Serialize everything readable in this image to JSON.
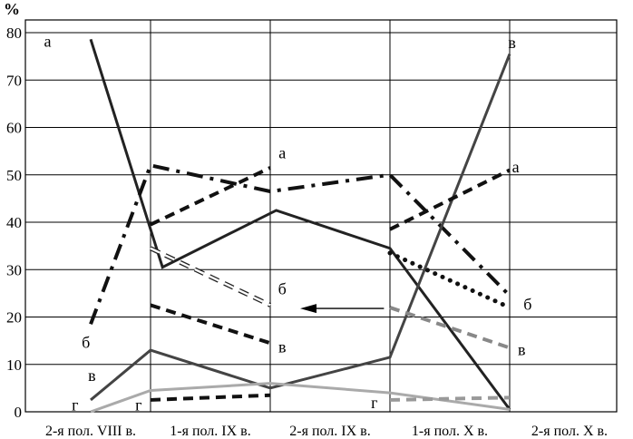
{
  "chart_data": {
    "type": "line",
    "ylabel": "%",
    "ylim": [
      0,
      80
    ],
    "yticks": [
      0,
      10,
      20,
      30,
      40,
      50,
      60,
      70,
      80
    ],
    "categories": [
      "2-я пол. VIII в.",
      "1-я пол. IX в.",
      "2-я пол. IX в.",
      "1-я пол. X в.",
      "2-я пол. X в."
    ],
    "grid": true,
    "series": [
      {
        "name": "а",
        "style": "solid",
        "color": "#222222",
        "points": [
          [
            0,
            78.6
          ],
          [
            0.6,
            30.5
          ],
          [
            1.55,
            42.5
          ],
          [
            2.5,
            34.5
          ],
          [
            3.5,
            0.5
          ]
        ]
      },
      {
        "name": "б",
        "style": "dash-dot",
        "color": "#111111",
        "points": [
          [
            0,
            18.5
          ],
          [
            0.5,
            52
          ],
          [
            1.5,
            46.5
          ],
          [
            2.5,
            50
          ],
          [
            3.5,
            24.5
          ]
        ]
      },
      {
        "name": "в",
        "style": "solid",
        "color": "#444444",
        "points": [
          [
            0,
            2.5
          ],
          [
            0.5,
            13
          ],
          [
            1.5,
            5
          ],
          [
            2.5,
            11.5
          ],
          [
            3.5,
            75.5
          ]
        ]
      },
      {
        "name": "г",
        "style": "solid",
        "color": "#aaaaaa",
        "points": [
          [
            0,
            0
          ],
          [
            0.5,
            4.5
          ],
          [
            1.5,
            6
          ],
          [
            2.5,
            4
          ],
          [
            3.5,
            0.5
          ]
        ]
      },
      {
        "name": "а",
        "style": "dashed",
        "color": "#111111",
        "points": [
          [
            0.5,
            39.5
          ],
          [
            1.5,
            51.5
          ]
        ]
      },
      {
        "name": "б",
        "style": "hollow-dashed",
        "color": "#222222",
        "points": [
          [
            0.5,
            34.5
          ],
          [
            1.5,
            22.5
          ]
        ]
      },
      {
        "name": "в",
        "style": "dashed",
        "color": "#111111",
        "points": [
          [
            0.5,
            22.5
          ],
          [
            1.5,
            14.5
          ]
        ]
      },
      {
        "name": "г",
        "style": "dashed",
        "color": "#111111",
        "points": [
          [
            0.5,
            2.5
          ],
          [
            1.5,
            3.5
          ]
        ]
      },
      {
        "name": "а",
        "style": "dashed",
        "color": "#111111",
        "points": [
          [
            2.5,
            38.5
          ],
          [
            3.5,
            51
          ]
        ]
      },
      {
        "name": "б",
        "style": "dotted",
        "color": "#111111",
        "points": [
          [
            2.5,
            33.5
          ],
          [
            3.5,
            22
          ]
        ]
      },
      {
        "name": "в",
        "style": "dashed",
        "color": "#888888",
        "points": [
          [
            2.5,
            22
          ],
          [
            3.5,
            13.5
          ]
        ]
      },
      {
        "name": "г",
        "style": "dashed",
        "color": "#999999",
        "points": [
          [
            2.5,
            2.5
          ],
          [
            3.5,
            3
          ]
        ]
      }
    ],
    "annotations": [
      {
        "text": "а",
        "x": -0.36,
        "y": 77
      },
      {
        "text": "б",
        "x": -0.04,
        "y": 13.5
      },
      {
        "text": "в",
        "x": 0.01,
        "y": 6.5
      },
      {
        "text": "г",
        "x": -0.13,
        "y": 0.3
      },
      {
        "text": "а",
        "x": 1.6,
        "y": 53.5
      },
      {
        "text": "б",
        "x": 1.6,
        "y": 24.8
      },
      {
        "text": "в",
        "x": 1.6,
        "y": 12.5
      },
      {
        "text": "г",
        "x": 0.4,
        "y": 0.3
      },
      {
        "text": "в",
        "x": 3.52,
        "y": 76.7
      },
      {
        "text": "а",
        "x": 3.55,
        "y": 50.5
      },
      {
        "text": "б",
        "x": 3.65,
        "y": 21.5
      },
      {
        "text": "в",
        "x": 3.6,
        "y": 12
      },
      {
        "text": "г",
        "x": 2.37,
        "y": 0.8
      }
    ],
    "arrow": {
      "from": [
        2.45,
        21.8
      ],
      "to": [
        1.75,
        21.8
      ]
    }
  }
}
